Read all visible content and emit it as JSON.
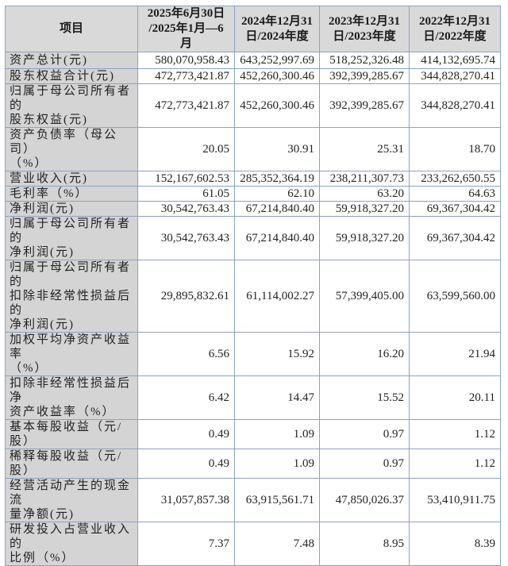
{
  "table": {
    "headers": [
      "项目",
      "2025年6月30日\n/2025年1月—6月",
      "2024年12月31\n日/2024年度",
      "2023年12月31\n日/2023年度",
      "2022年12月31\n日/2022年度"
    ],
    "header_lines": [
      [
        "项目"
      ],
      [
        "2025年6月30日",
        "/2025年1月—6月"
      ],
      [
        "2024年12月31",
        "日/2024年度"
      ],
      [
        "2023年12月31",
        "日/2023年度"
      ],
      [
        "2022年12月31",
        "日/2022年度"
      ]
    ],
    "rows": [
      {
        "label_lines": [
          "资产总计(元)"
        ],
        "values": [
          "580,070,958.43",
          "643,252,997.69",
          "518,252,326.48",
          "414,132,695.74"
        ]
      },
      {
        "label_lines": [
          "股东权益合计(元)"
        ],
        "values": [
          "472,773,421.87",
          "452,260,300.46",
          "392,399,285.67",
          "344,828,270.41"
        ]
      },
      {
        "label_lines": [
          "归属于母公司所有者的",
          "股东权益(元)"
        ],
        "values": [
          "472,773,421.87",
          "452,260,300.46",
          "392,399,285.67",
          "344,828,270.41"
        ]
      },
      {
        "label_lines": [
          "资产负债率（母公司）",
          "（%）"
        ],
        "values": [
          "20.05",
          "30.91",
          "25.31",
          "18.70"
        ]
      },
      {
        "label_lines": [
          "营业收入(元)"
        ],
        "values": [
          "152,167,602.53",
          "285,352,364.19",
          "238,211,307.73",
          "233,262,650.55"
        ]
      },
      {
        "label_lines": [
          "毛利率（%）"
        ],
        "values": [
          "61.05",
          "62.10",
          "63.20",
          "64.63"
        ]
      },
      {
        "label_lines": [
          "净利润(元)"
        ],
        "values": [
          "30,542,763.43",
          "67,214,840.40",
          "59,918,327.20",
          "69,367,304.42"
        ]
      },
      {
        "label_lines": [
          "归属于母公司所有者的",
          "净利润(元)"
        ],
        "values": [
          "30,542,763.43",
          "67,214,840.40",
          "59,918,327.20",
          "69,367,304.42"
        ]
      },
      {
        "label_lines": [
          "归属于母公司所有者的",
          "扣除非经常性损益后的",
          "净利润(元)"
        ],
        "values": [
          "29,895,832.61",
          "61,114,002.27",
          "57,399,405.00",
          "63,599,560.00"
        ]
      },
      {
        "label_lines": [
          "加权平均净资产收益率",
          "（%）"
        ],
        "values": [
          "6.56",
          "15.92",
          "16.20",
          "21.94"
        ]
      },
      {
        "label_lines": [
          "扣除非经常性损益后净",
          "资产收益率（%）"
        ],
        "values": [
          "6.42",
          "14.47",
          "15.52",
          "20.11"
        ]
      },
      {
        "label_lines": [
          "基本每股收益（元/股）"
        ],
        "values": [
          "0.49",
          "1.09",
          "0.97",
          "1.12"
        ]
      },
      {
        "label_lines": [
          "稀释每股收益（元/股）"
        ],
        "values": [
          "0.49",
          "1.09",
          "0.97",
          "1.12"
        ]
      },
      {
        "label_lines": [
          "经营活动产生的现金流",
          "量净额(元)"
        ],
        "values": [
          "31,057,857.38",
          "63,915,561.71",
          "47,850,026.37",
          "53,410,911.75"
        ]
      },
      {
        "label_lines": [
          "研发投入占营业收入的",
          "比例（%）"
        ],
        "values": [
          "7.37",
          "7.48",
          "8.95",
          "8.39"
        ]
      }
    ]
  }
}
